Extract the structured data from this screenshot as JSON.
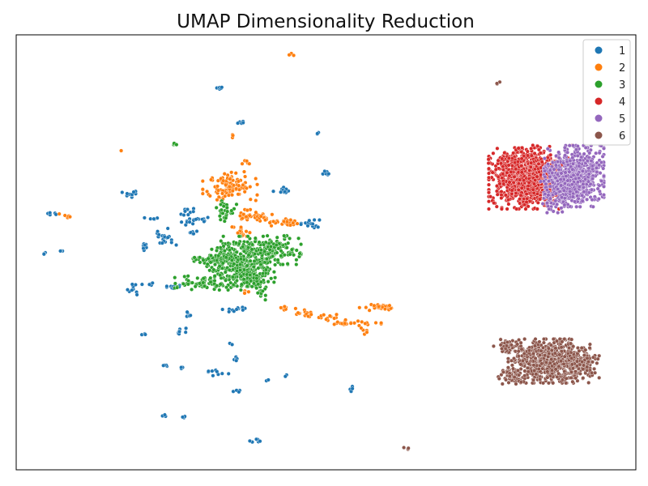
{
  "chart_data": {
    "type": "scatter",
    "title": "UMAP Dimensionality Reduction",
    "xlabel": "",
    "ylabel": "",
    "xlim": [
      0,
      100
    ],
    "ylim": [
      0,
      100
    ],
    "axis_ticks": false,
    "grid": false,
    "legend": {
      "position": "top-right",
      "entries": [
        "1",
        "2",
        "3",
        "4",
        "5",
        "6"
      ]
    },
    "series": [
      {
        "name": "1",
        "color": "#1f77b4",
        "clusters": [
          {
            "cx": 32.7,
            "cy": 88.1,
            "sx": 0.4,
            "sy": 0.3,
            "n": 6
          },
          {
            "cx": 36.3,
            "cy": 79.8,
            "sx": 0.3,
            "sy": 0.2,
            "n": 5
          },
          {
            "cx": 48.7,
            "cy": 77.3,
            "sx": 0.2,
            "sy": 0.2,
            "n": 3
          },
          {
            "cx": 50.0,
            "cy": 68.2,
            "sx": 0.5,
            "sy": 0.3,
            "n": 6
          },
          {
            "cx": 43.0,
            "cy": 64.2,
            "sx": 0.7,
            "sy": 0.5,
            "n": 12
          },
          {
            "cx": 18.2,
            "cy": 63.2,
            "sx": 0.5,
            "sy": 0.3,
            "n": 6
          },
          {
            "cx": 5.5,
            "cy": 58.9,
            "sx": 0.5,
            "sy": 0.2,
            "n": 6
          },
          {
            "cx": 21.8,
            "cy": 57.8,
            "sx": 0.5,
            "sy": 0.2,
            "n": 5
          },
          {
            "cx": 27.5,
            "cy": 59.5,
            "sx": 0.6,
            "sy": 0.6,
            "n": 10
          },
          {
            "cx": 28.0,
            "cy": 56.8,
            "sx": 0.6,
            "sy": 0.4,
            "n": 8
          },
          {
            "cx": 29.5,
            "cy": 57.5,
            "sx": 0.7,
            "sy": 0.3,
            "n": 10
          },
          {
            "cx": 28.5,
            "cy": 54.5,
            "sx": 0.5,
            "sy": 0.3,
            "n": 6
          },
          {
            "cx": 24.0,
            "cy": 53.5,
            "sx": 1.0,
            "sy": 1.0,
            "n": 20
          },
          {
            "cx": 20.5,
            "cy": 51.5,
            "sx": 0.5,
            "sy": 0.5,
            "n": 8
          },
          {
            "cx": 47.5,
            "cy": 56.5,
            "sx": 0.7,
            "sy": 0.6,
            "n": 16
          },
          {
            "cx": 4.5,
            "cy": 49.7,
            "sx": 0.2,
            "sy": 0.2,
            "n": 3
          },
          {
            "cx": 7.3,
            "cy": 50.5,
            "sx": 0.2,
            "sy": 0.2,
            "n": 3
          },
          {
            "cx": 19.0,
            "cy": 42.0,
            "sx": 0.6,
            "sy": 0.8,
            "n": 10
          },
          {
            "cx": 22.0,
            "cy": 42.5,
            "sx": 0.4,
            "sy": 0.2,
            "n": 5
          },
          {
            "cx": 25.5,
            "cy": 42.0,
            "sx": 0.8,
            "sy": 0.4,
            "n": 10
          },
          {
            "cx": 35.5,
            "cy": 37.0,
            "sx": 1.0,
            "sy": 0.3,
            "n": 12
          },
          {
            "cx": 27.8,
            "cy": 35.8,
            "sx": 0.3,
            "sy": 0.4,
            "n": 5
          },
          {
            "cx": 26.5,
            "cy": 32.0,
            "sx": 0.6,
            "sy": 0.5,
            "n": 8
          },
          {
            "cx": 20.5,
            "cy": 31.0,
            "sx": 0.2,
            "sy": 0.2,
            "n": 3
          },
          {
            "cx": 34.7,
            "cy": 29.0,
            "sx": 0.2,
            "sy": 0.2,
            "n": 2
          },
          {
            "cx": 35.5,
            "cy": 25.5,
            "sx": 0.3,
            "sy": 0.5,
            "n": 5
          },
          {
            "cx": 24.0,
            "cy": 24.0,
            "sx": 0.3,
            "sy": 0.2,
            "n": 4
          },
          {
            "cx": 26.8,
            "cy": 23.5,
            "sx": 0.2,
            "sy": 0.2,
            "n": 3
          },
          {
            "cx": 32.5,
            "cy": 22.5,
            "sx": 1.0,
            "sy": 0.4,
            "n": 10
          },
          {
            "cx": 40.5,
            "cy": 20.5,
            "sx": 0.2,
            "sy": 0.2,
            "n": 2
          },
          {
            "cx": 43.5,
            "cy": 21.5,
            "sx": 0.2,
            "sy": 0.2,
            "n": 2
          },
          {
            "cx": 35.5,
            "cy": 18.0,
            "sx": 0.4,
            "sy": 0.2,
            "n": 4
          },
          {
            "cx": 54.3,
            "cy": 18.5,
            "sx": 0.4,
            "sy": 0.3,
            "n": 4
          },
          {
            "cx": 24.0,
            "cy": 12.5,
            "sx": 0.2,
            "sy": 0.2,
            "n": 3
          },
          {
            "cx": 27.3,
            "cy": 12.0,
            "sx": 0.2,
            "sy": 0.2,
            "n": 3
          },
          {
            "cx": 38.8,
            "cy": 6.6,
            "sx": 0.5,
            "sy": 0.3,
            "n": 6
          },
          {
            "cx": 19.0,
            "cy": 63.5,
            "sx": 0.5,
            "sy": 0.3,
            "n": 4
          }
        ]
      },
      {
        "name": "2",
        "color": "#ff7f0e",
        "clusters": [
          {
            "cx": 44.2,
            "cy": 95.5,
            "sx": 0.4,
            "sy": 0.2,
            "n": 4
          },
          {
            "cx": 17.0,
            "cy": 73.3,
            "sx": 0.2,
            "sy": 0.2,
            "n": 2
          },
          {
            "cx": 35.2,
            "cy": 76.8,
            "sx": 0.2,
            "sy": 0.2,
            "n": 3
          },
          {
            "cx": 37.0,
            "cy": 70.5,
            "sx": 0.4,
            "sy": 0.3,
            "n": 5
          },
          {
            "cx": 34.5,
            "cy": 65.0,
            "sx": 2.0,
            "sy": 1.8,
            "n": 110
          },
          {
            "cx": 38.5,
            "cy": 58.5,
            "sx": 1.5,
            "sy": 0.6,
            "n": 40
          },
          {
            "cx": 43.5,
            "cy": 56.8,
            "sx": 1.5,
            "sy": 0.4,
            "n": 30
          },
          {
            "cx": 36.3,
            "cy": 54.5,
            "sx": 0.8,
            "sy": 0.7,
            "n": 18
          },
          {
            "cx": 8.5,
            "cy": 58.5,
            "sx": 0.7,
            "sy": 0.3,
            "n": 6
          },
          {
            "cx": 37.0,
            "cy": 41.0,
            "sx": 0.3,
            "sy": 0.4,
            "n": 4
          },
          {
            "cx": 43.0,
            "cy": 37.3,
            "sx": 0.6,
            "sy": 0.3,
            "n": 8
          },
          {
            "cx": 46.5,
            "cy": 36.2,
            "sx": 1.0,
            "sy": 0.4,
            "n": 12
          },
          {
            "cx": 50.0,
            "cy": 35.0,
            "sx": 1.3,
            "sy": 0.4,
            "n": 16
          },
          {
            "cx": 54.5,
            "cy": 33.8,
            "sx": 2.0,
            "sy": 0.3,
            "n": 24
          },
          {
            "cx": 58.7,
            "cy": 37.3,
            "sx": 1.5,
            "sy": 0.4,
            "n": 30
          },
          {
            "cx": 56.3,
            "cy": 32.0,
            "sx": 0.4,
            "sy": 0.4,
            "n": 6
          }
        ]
      },
      {
        "name": "3",
        "color": "#2ca02c",
        "clusters": [
          {
            "cx": 25.6,
            "cy": 74.8,
            "sx": 0.4,
            "sy": 0.2,
            "n": 5
          },
          {
            "cx": 33.8,
            "cy": 59.8,
            "sx": 0.8,
            "sy": 1.2,
            "n": 28
          },
          {
            "cx": 36.5,
            "cy": 47.5,
            "sx": 2.4,
            "sy": 2.8,
            "n": 380
          },
          {
            "cx": 42.0,
            "cy": 50.5,
            "sx": 1.8,
            "sy": 1.5,
            "n": 120
          },
          {
            "cx": 32.0,
            "cy": 48.2,
            "sx": 1.5,
            "sy": 1.0,
            "n": 60
          },
          {
            "cx": 30.0,
            "cy": 43.0,
            "sx": 2.0,
            "sy": 0.7,
            "n": 60
          },
          {
            "cx": 38.5,
            "cy": 44.0,
            "sx": 1.2,
            "sy": 1.2,
            "n": 60
          },
          {
            "cx": 39.5,
            "cy": 40.5,
            "sx": 0.5,
            "sy": 0.8,
            "n": 12
          },
          {
            "cx": 29.5,
            "cy": 48.5,
            "sx": 0.7,
            "sy": 0.3,
            "n": 10
          }
        ]
      },
      {
        "name": "4",
        "color": "#d62728",
        "clusters": [
          {
            "cx": 82.0,
            "cy": 67.0,
            "sx": 2.6,
            "sy": 3.2,
            "n": 900
          },
          {
            "cx": 78.2,
            "cy": 71.0,
            "sx": 0.9,
            "sy": 0.4,
            "n": 20
          },
          {
            "cx": 86.0,
            "cy": 68.0,
            "sx": 2.0,
            "sy": 3.0,
            "n": 150
          }
        ]
      },
      {
        "name": "5",
        "color": "#9467bd",
        "clusters": [
          {
            "cx": 90.0,
            "cy": 67.5,
            "sx": 2.2,
            "sy": 3.2,
            "n": 700
          },
          {
            "cx": 87.0,
            "cy": 63.5,
            "sx": 1.2,
            "sy": 2.0,
            "n": 100
          }
        ]
      },
      {
        "name": "6",
        "color": "#8c564b",
        "clusters": [
          {
            "cx": 77.8,
            "cy": 89.0,
            "sx": 0.2,
            "sy": 0.2,
            "n": 3
          },
          {
            "cx": 86.0,
            "cy": 25.0,
            "sx": 3.0,
            "sy": 2.3,
            "n": 650
          },
          {
            "cx": 79.5,
            "cy": 28.5,
            "sx": 1.3,
            "sy": 0.8,
            "n": 40
          },
          {
            "cx": 80.0,
            "cy": 21.5,
            "sx": 1.0,
            "sy": 0.8,
            "n": 40
          },
          {
            "cx": 91.0,
            "cy": 24.5,
            "sx": 1.4,
            "sy": 1.6,
            "n": 120
          },
          {
            "cx": 63.0,
            "cy": 5.0,
            "sx": 0.3,
            "sy": 0.2,
            "n": 4
          }
        ]
      }
    ]
  }
}
